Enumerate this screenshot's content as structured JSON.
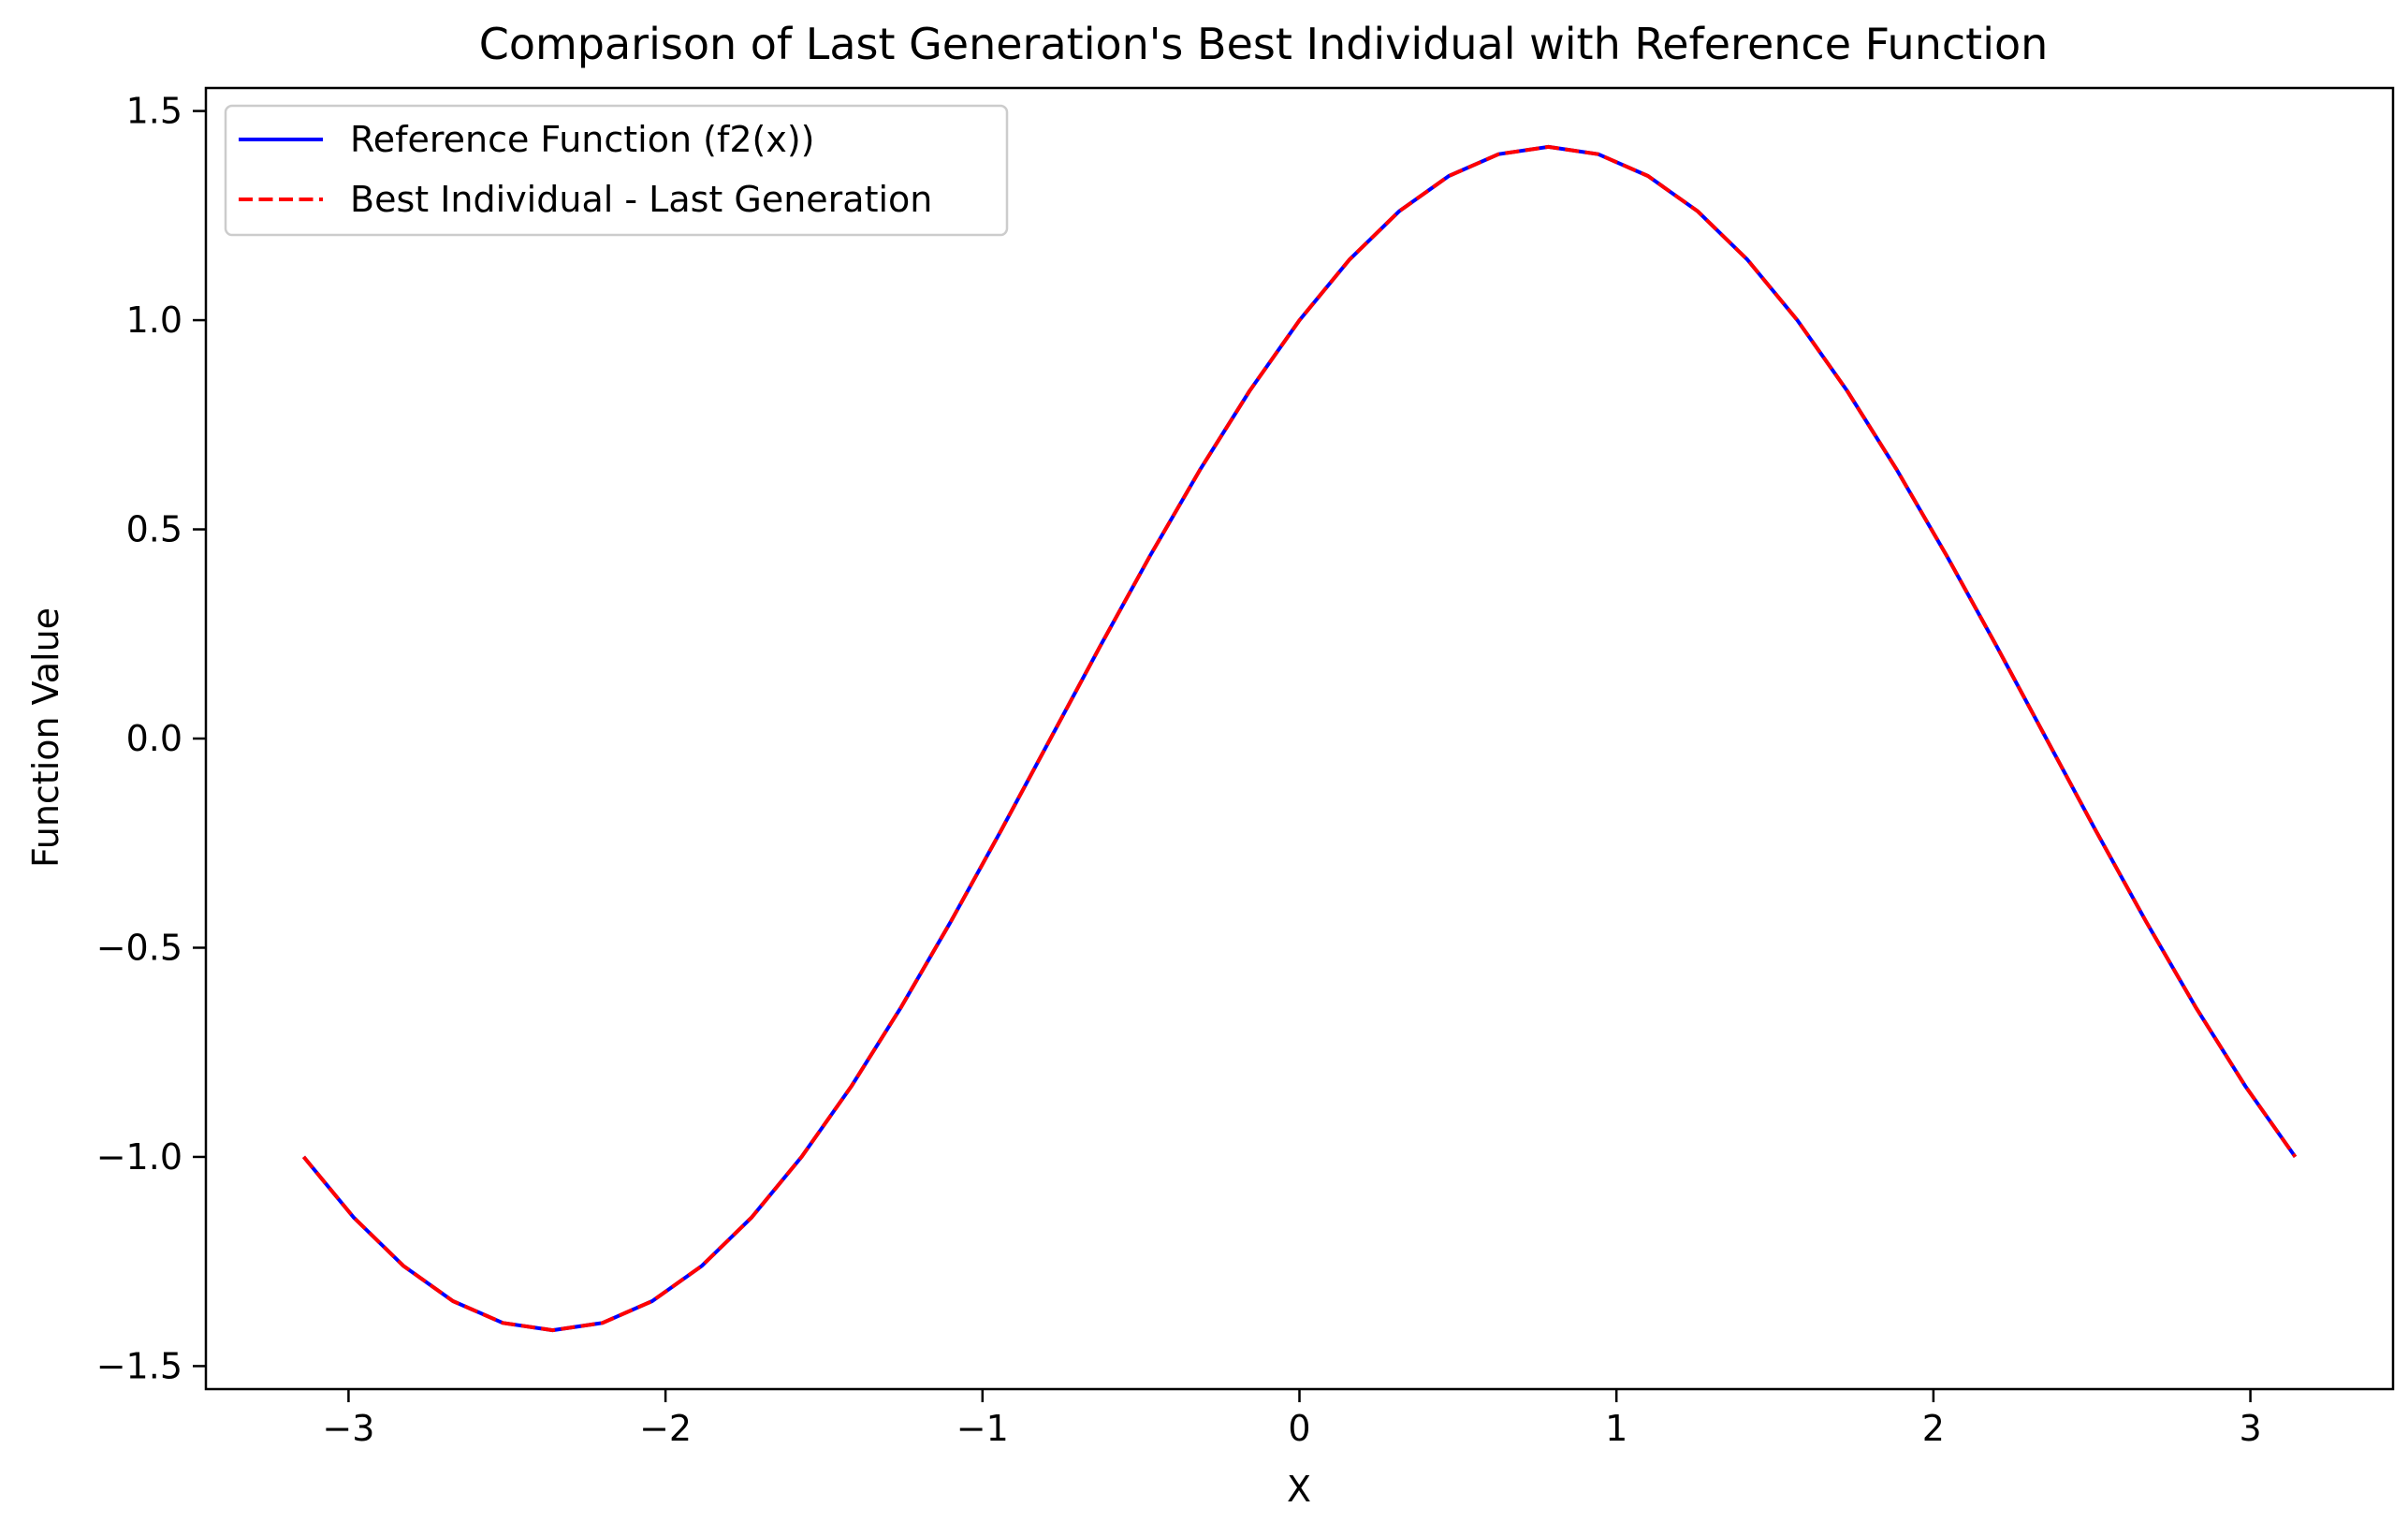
{
  "chart_data": {
    "type": "line",
    "title": "Comparison of Last Generation's Best Individual with Reference Function",
    "xlabel": "X",
    "ylabel": "Function Value",
    "xlim": [
      -3.45,
      3.45
    ],
    "ylim": [
      -1.555,
      1.555
    ],
    "x_ticks": [
      -3,
      -2,
      -1,
      0,
      1,
      2,
      3
    ],
    "x_tick_labels": [
      "−3",
      "−2",
      "−1",
      "0",
      "1",
      "2",
      "3"
    ],
    "y_ticks": [
      1.5,
      1.0,
      0.5,
      0.0,
      -0.5,
      -1.0,
      -1.5
    ],
    "y_tick_labels": [
      "1.5",
      "1.0",
      "0.5",
      "0.0",
      "−0.5",
      "−1.0",
      "−1.5"
    ],
    "legend_position": "upper-left",
    "grid": false,
    "x": [
      -3.1416,
      -2.9845,
      -2.8274,
      -2.6704,
      -2.5133,
      -2.3562,
      -2.1991,
      -2.042,
      -1.885,
      -1.7279,
      -1.5708,
      -1.4137,
      -1.2566,
      -1.0996,
      -0.9425,
      -0.7854,
      -0.6283,
      -0.4712,
      -0.3142,
      -0.1571,
      0.0,
      0.1571,
      0.3142,
      0.4712,
      0.6283,
      0.7854,
      0.9425,
      1.0996,
      1.2566,
      1.4137,
      1.5708,
      1.7279,
      1.885,
      2.042,
      2.1991,
      2.3562,
      2.5133,
      2.6704,
      2.8274,
      2.9845,
      3.1416
    ],
    "series": [
      {
        "name": "Reference Function (f2(x))",
        "color": "#0000ff",
        "style": "solid",
        "values": [
          -1.0,
          -1.1441,
          -1.2601,
          -1.3446,
          -1.3968,
          -1.4142,
          -1.3968,
          -1.3446,
          -1.2601,
          -1.1441,
          -1.0,
          -0.8313,
          -0.642,
          -0.437,
          -0.2212,
          0.0,
          0.2212,
          0.437,
          0.642,
          0.8313,
          1.0,
          1.1441,
          1.2601,
          1.3446,
          1.3968,
          1.4142,
          1.3968,
          1.3446,
          1.2601,
          1.1441,
          1.0,
          0.8313,
          0.642,
          0.437,
          0.2212,
          0.0,
          -0.2212,
          -0.437,
          -0.642,
          -0.8313,
          -1.0
        ]
      },
      {
        "name": "Best Individual - Last Generation",
        "color": "#ff0000",
        "style": "dashed",
        "values": [
          -1.0,
          -1.1441,
          -1.2601,
          -1.3446,
          -1.3968,
          -1.4142,
          -1.3968,
          -1.3446,
          -1.2601,
          -1.1441,
          -1.0,
          -0.8313,
          -0.642,
          -0.437,
          -0.2212,
          0.0,
          0.2212,
          0.437,
          0.642,
          0.8313,
          1.0,
          1.1441,
          1.2601,
          1.3446,
          1.3968,
          1.4142,
          1.3968,
          1.3446,
          1.2601,
          1.1441,
          1.0,
          0.8313,
          0.642,
          0.437,
          0.2212,
          0.0,
          -0.2212,
          -0.437,
          -0.642,
          -0.8313,
          -1.0
        ]
      }
    ]
  }
}
